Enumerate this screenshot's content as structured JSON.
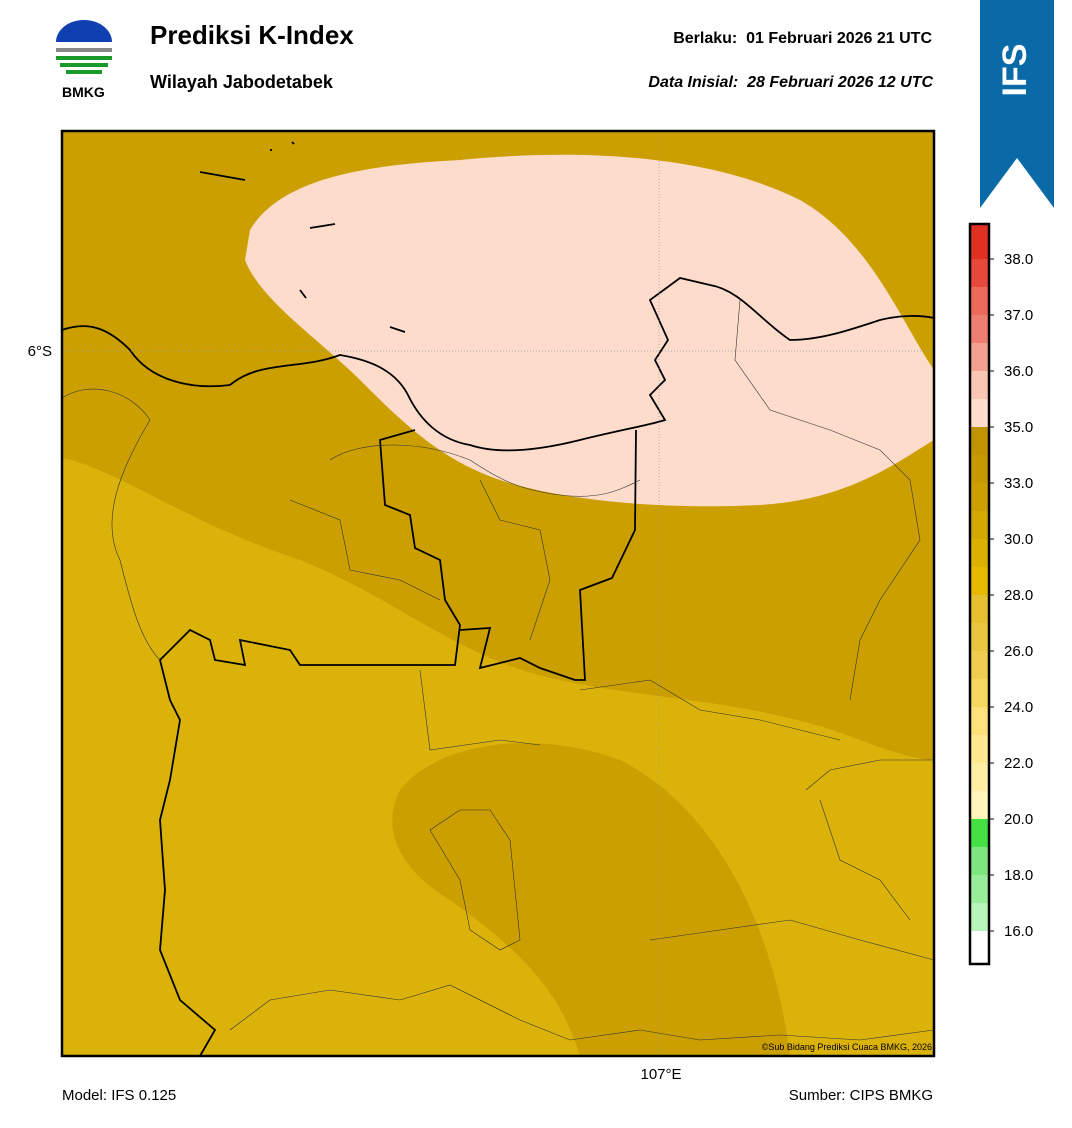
{
  "header": {
    "title": "Prediksi K-Index",
    "subtitle": "Wilayah Jabodetabek",
    "valid_label": "Berlaku:",
    "valid": "01 Februari 2026 21 UTC",
    "init_label": "Data Inisial:",
    "init": "28 Februari 2026 12 UTC",
    "logo": "BMKG",
    "badge": "IFS"
  },
  "map": {
    "lat_label": "6°S",
    "lon_label": "107°E",
    "credit": "©Sub Bidang Prediksi Cuaca BMKG, 2026"
  },
  "colorbar": {
    "ticks": [
      {
        "value": 16,
        "label": "16.0"
      },
      {
        "value": 18,
        "label": "18.0"
      },
      {
        "value": 20,
        "label": "20.0"
      },
      {
        "value": 22,
        "label": "22.0"
      },
      {
        "value": 24,
        "label": "24.0"
      },
      {
        "value": 26,
        "label": "26.0"
      },
      {
        "value": 28,
        "label": "28.0"
      },
      {
        "value": 30,
        "label": "30.0"
      },
      {
        "value": 33,
        "label": "33.0"
      },
      {
        "value": 35,
        "label": "35.0"
      },
      {
        "value": 36,
        "label": "36.0"
      },
      {
        "value": 37,
        "label": "37.0"
      },
      {
        "value": 38,
        "label": "38.0"
      }
    ],
    "colors": [
      "#ffffff",
      "#b8f5b8",
      "#98ee98",
      "#7ee67e",
      "#44e044",
      "#fff5b8",
      "#ffefa4",
      "#ffe890",
      "#fde07a",
      "#f6d65e",
      "#f0cc50",
      "#eac540",
      "#e6bf30",
      "#e6b800",
      "#dcb000",
      "#d4a800",
      "#cc9f00",
      "#c59a00",
      "#bf9400",
      "#ffdccc",
      "#f9c6b4",
      "#f4a090",
      "#ee7f70",
      "#eb6a5a",
      "#e6483a",
      "#e03020"
    ]
  },
  "footer": {
    "model": "Model: IFS 0.125",
    "source": "Sumber: CIPS BMKG"
  }
}
